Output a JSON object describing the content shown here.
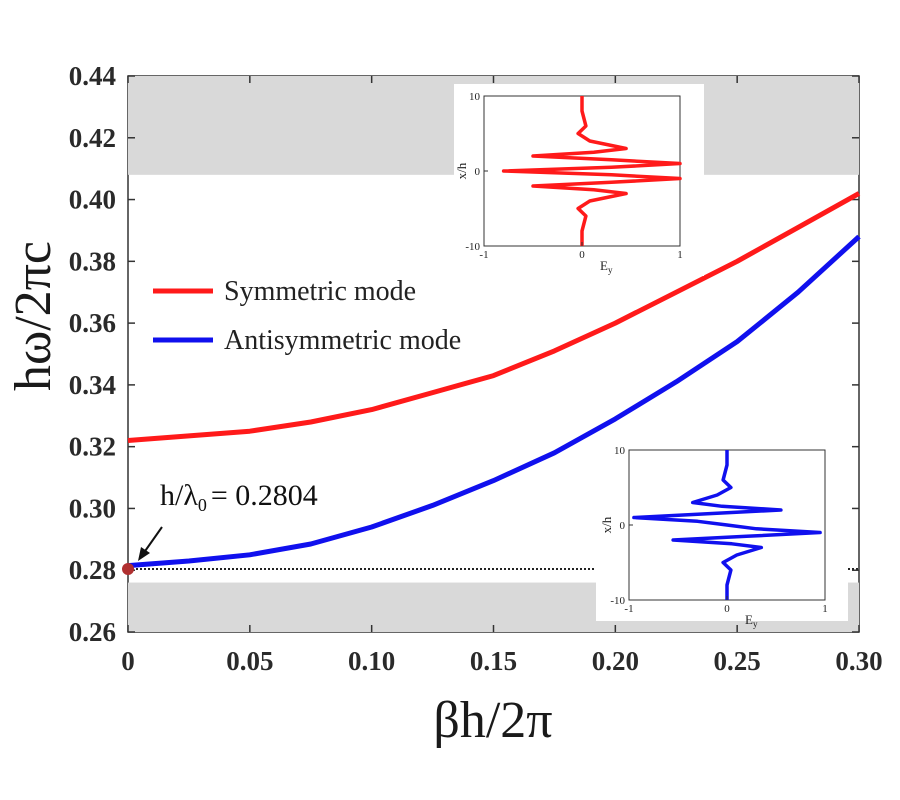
{
  "chart_data": {
    "type": "line",
    "title": "",
    "xlabel": "βh/2π",
    "ylabel": "hω/2πc",
    "xlim": [
      0,
      0.3
    ],
    "ylim": [
      0.26,
      0.44
    ],
    "xticks": [
      "0",
      "0.05",
      "0.10",
      "0.15",
      "0.20",
      "0.25",
      "0.30"
    ],
    "yticks": [
      "0.26",
      "0.28",
      "0.30",
      "0.32",
      "0.34",
      "0.36",
      "0.38",
      "0.40",
      "0.42",
      "0.44"
    ],
    "band_gaps": [
      [
        0.408,
        0.44
      ],
      [
        0.26,
        0.276
      ]
    ],
    "light_line": 0.2804,
    "series": [
      {
        "name": "Symmetric mode",
        "color": "#ff1a1a",
        "x": [
          0,
          0.025,
          0.05,
          0.075,
          0.1,
          0.125,
          0.15,
          0.175,
          0.2,
          0.225,
          0.25,
          0.275,
          0.3
        ],
        "y": [
          0.322,
          0.3235,
          0.325,
          0.328,
          0.332,
          0.3375,
          0.343,
          0.351,
          0.36,
          0.37,
          0.38,
          0.391,
          0.402
        ]
      },
      {
        "name": "Antisymmetric mode",
        "color": "#1010ee",
        "x": [
          0,
          0.025,
          0.05,
          0.075,
          0.1,
          0.125,
          0.15,
          0.175,
          0.2,
          0.225,
          0.25,
          0.275,
          0.3
        ],
        "y": [
          0.2815,
          0.283,
          0.285,
          0.2885,
          0.294,
          0.301,
          0.309,
          0.318,
          0.329,
          0.341,
          0.354,
          0.37,
          0.388
        ]
      }
    ],
    "marker": {
      "x": 0,
      "y": 0.2804,
      "color": "#b03030"
    },
    "annotation": "h/λ",
    "annotation_sub": "0",
    "annotation_value": "= 0.2804",
    "insets": [
      {
        "color": "#ff1a1a",
        "xlabel": "E",
        "xlabel_sub": "y",
        "ylabel": "x/h",
        "xticks": [
          "-1",
          "0",
          "1"
        ],
        "yticks": [
          "10",
          "0",
          "-10"
        ],
        "profile": [
          [
            -10,
            0
          ],
          [
            -8,
            0
          ],
          [
            -6,
            0.04
          ],
          [
            -5,
            -0.04
          ],
          [
            -4,
            0.08
          ],
          [
            -3,
            0.45
          ],
          [
            -2.5,
            0.12
          ],
          [
            -2,
            -0.5
          ],
          [
            -1.5,
            0.3
          ],
          [
            -1,
            1.0
          ],
          [
            -0.5,
            0.3
          ],
          [
            0,
            -0.8
          ],
          [
            0.5,
            0.3
          ],
          [
            1,
            1.0
          ],
          [
            1.5,
            0.3
          ],
          [
            2,
            -0.5
          ],
          [
            2.5,
            0.12
          ],
          [
            3,
            0.45
          ],
          [
            4,
            0.08
          ],
          [
            5,
            -0.04
          ],
          [
            6,
            0.04
          ],
          [
            8,
            0
          ],
          [
            10,
            0
          ]
        ]
      },
      {
        "color": "#1010ee",
        "xlabel": "E",
        "xlabel_sub": "y",
        "ylabel": "x/h",
        "xticks": [
          "-1",
          "0",
          "1"
        ],
        "yticks": [
          "10",
          "0",
          "-10"
        ],
        "profile": [
          [
            -10,
            0
          ],
          [
            -8,
            0
          ],
          [
            -6,
            0.04
          ],
          [
            -5,
            -0.04
          ],
          [
            -4,
            0.1
          ],
          [
            -3,
            0.35
          ],
          [
            -2.5,
            0.05
          ],
          [
            -2,
            -0.55
          ],
          [
            -1.5,
            0.2
          ],
          [
            -1,
            0.95
          ],
          [
            -0.5,
            0.3
          ],
          [
            0,
            0.0
          ],
          [
            0.5,
            -0.3
          ],
          [
            1,
            -0.95
          ],
          [
            1.5,
            -0.2
          ],
          [
            2,
            0.55
          ],
          [
            2.5,
            -0.05
          ],
          [
            3,
            -0.35
          ],
          [
            4,
            -0.1
          ],
          [
            5,
            0.04
          ],
          [
            6,
            -0.04
          ],
          [
            8,
            0
          ],
          [
            10,
            0
          ]
        ]
      }
    ]
  }
}
